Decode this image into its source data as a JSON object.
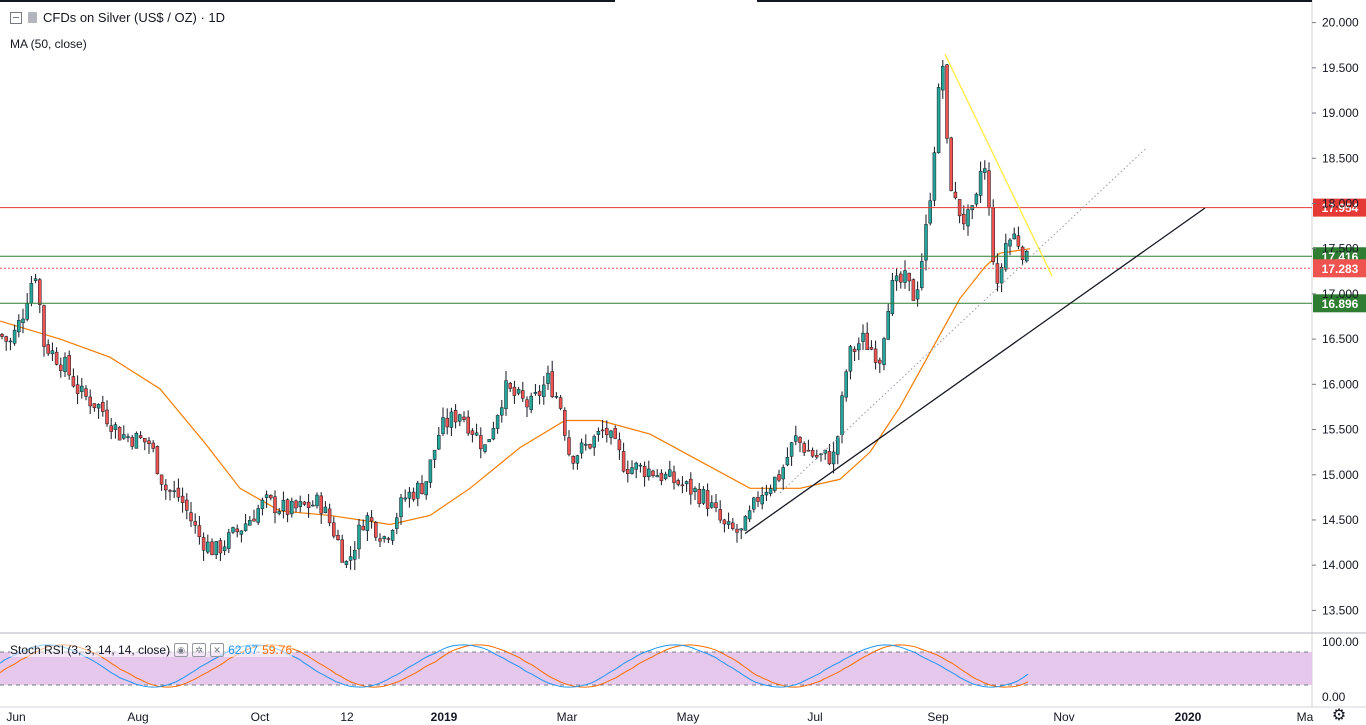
{
  "legend": {
    "title": "CFDs on Silver (US$ / OZ) · 1D",
    "ma_label": "MA (50, close)",
    "collapse_icon": "minus-box-icon",
    "symbol_icon": "symbol-icon"
  },
  "rsi_legend": {
    "label": "Stoch RSI (3, 3, 14, 14, close)",
    "k_value": "62.07",
    "d_value": "59.76"
  },
  "colors": {
    "up": "#26a69a",
    "down": "#ef5350",
    "ma": "#f57c00",
    "resistance": "#e53935",
    "support": "#2e7d32",
    "price_tag": "#ef5350",
    "stoch_k": "#2196f3",
    "stoch_d": "#ff6d00",
    "stoch_band": "#e1bee7",
    "trend_down": "#ffeb3b",
    "trend_up": "#131722"
  },
  "chart_data": {
    "type": "candlestick",
    "title": "CFDs on Silver (US$ / OZ) · 1D",
    "ylim": [
      13.25,
      20.25
    ],
    "yticks": [
      "13.500",
      "14.000",
      "14.500",
      "15.000",
      "15.500",
      "16.000",
      "16.500",
      "17.000",
      "17.500",
      "18.000",
      "18.500",
      "19.000",
      "19.500",
      "20.000"
    ],
    "xticks": [
      "Jun",
      "Aug",
      "Oct",
      "12",
      "2019",
      "Mar",
      "May",
      "Jul",
      "Sep",
      "Nov",
      "2020",
      "Ma"
    ],
    "price_levels": [
      {
        "label": "17.954",
        "value": 17.954,
        "role": "resistance"
      },
      {
        "label": "17.416",
        "value": 17.416,
        "role": "support-upper"
      },
      {
        "label": "17.283",
        "value": 17.283,
        "role": "last-price"
      },
      {
        "label": "16.896",
        "value": 16.896,
        "role": "support-lower"
      }
    ],
    "close_path": [
      {
        "t": 0,
        "v": 16.55
      },
      {
        "t": 10,
        "v": 16.45
      },
      {
        "t": 22,
        "v": 16.75
      },
      {
        "t": 30,
        "v": 17.1
      },
      {
        "t": 36,
        "v": 17.25
      },
      {
        "t": 44,
        "v": 16.45
      },
      {
        "t": 65,
        "v": 16.2
      },
      {
        "t": 80,
        "v": 15.9
      },
      {
        "t": 100,
        "v": 15.75
      },
      {
        "t": 120,
        "v": 15.45
      },
      {
        "t": 150,
        "v": 15.35
      },
      {
        "t": 165,
        "v": 14.85
      },
      {
        "t": 180,
        "v": 14.75
      },
      {
        "t": 200,
        "v": 14.3
      },
      {
        "t": 215,
        "v": 14.15
      },
      {
        "t": 240,
        "v": 14.4
      },
      {
        "t": 265,
        "v": 14.7
      },
      {
        "t": 290,
        "v": 14.6
      },
      {
        "t": 320,
        "v": 14.7
      },
      {
        "t": 335,
        "v": 14.35
      },
      {
        "t": 347,
        "v": 14.0
      },
      {
        "t": 365,
        "v": 14.55
      },
      {
        "t": 385,
        "v": 14.3
      },
      {
        "t": 405,
        "v": 14.75
      },
      {
        "t": 425,
        "v": 14.9
      },
      {
        "t": 440,
        "v": 15.5
      },
      {
        "t": 460,
        "v": 15.7
      },
      {
        "t": 485,
        "v": 15.3
      },
      {
        "t": 505,
        "v": 15.95
      },
      {
        "t": 530,
        "v": 15.75
      },
      {
        "t": 548,
        "v": 16.05
      },
      {
        "t": 560,
        "v": 15.8
      },
      {
        "t": 570,
        "v": 15.2
      },
      {
        "t": 585,
        "v": 15.3
      },
      {
        "t": 605,
        "v": 15.5
      },
      {
        "t": 625,
        "v": 15.1
      },
      {
        "t": 650,
        "v": 15.05
      },
      {
        "t": 680,
        "v": 14.9
      },
      {
        "t": 705,
        "v": 14.75
      },
      {
        "t": 725,
        "v": 14.4
      },
      {
        "t": 742,
        "v": 14.35
      },
      {
        "t": 760,
        "v": 14.8
      },
      {
        "t": 780,
        "v": 15.0
      },
      {
        "t": 795,
        "v": 15.4
      },
      {
        "t": 815,
        "v": 15.2
      },
      {
        "t": 835,
        "v": 15.2
      },
      {
        "t": 848,
        "v": 16.3
      },
      {
        "t": 862,
        "v": 16.5
      },
      {
        "t": 880,
        "v": 16.3
      },
      {
        "t": 890,
        "v": 17.05
      },
      {
        "t": 905,
        "v": 17.15
      },
      {
        "t": 915,
        "v": 16.95
      },
      {
        "t": 925,
        "v": 17.6
      },
      {
        "t": 932,
        "v": 18.3
      },
      {
        "t": 938,
        "v": 19.15
      },
      {
        "t": 943,
        "v": 19.55
      },
      {
        "t": 948,
        "v": 18.4
      },
      {
        "t": 955,
        "v": 18.0
      },
      {
        "t": 965,
        "v": 17.8
      },
      {
        "t": 975,
        "v": 17.9
      },
      {
        "t": 983,
        "v": 18.55
      },
      {
        "t": 990,
        "v": 17.8
      },
      {
        "t": 997,
        "v": 17.0
      },
      {
        "t": 1005,
        "v": 17.55
      },
      {
        "t": 1015,
        "v": 17.65
      },
      {
        "t": 1022,
        "v": 17.5
      },
      {
        "t": 1030,
        "v": 17.28
      }
    ],
    "ma_path": [
      {
        "t": 0,
        "v": 16.7
      },
      {
        "t": 60,
        "v": 16.5
      },
      {
        "t": 110,
        "v": 16.3
      },
      {
        "t": 160,
        "v": 15.95
      },
      {
        "t": 205,
        "v": 15.35
      },
      {
        "t": 240,
        "v": 14.85
      },
      {
        "t": 280,
        "v": 14.6
      },
      {
        "t": 330,
        "v": 14.55
      },
      {
        "t": 390,
        "v": 14.45
      },
      {
        "t": 430,
        "v": 14.55
      },
      {
        "t": 470,
        "v": 14.85
      },
      {
        "t": 520,
        "v": 15.3
      },
      {
        "t": 565,
        "v": 15.6
      },
      {
        "t": 600,
        "v": 15.6
      },
      {
        "t": 650,
        "v": 15.45
      },
      {
        "t": 700,
        "v": 15.15
      },
      {
        "t": 750,
        "v": 14.85
      },
      {
        "t": 800,
        "v": 14.85
      },
      {
        "t": 840,
        "v": 14.95
      },
      {
        "t": 870,
        "v": 15.25
      },
      {
        "t": 900,
        "v": 15.75
      },
      {
        "t": 930,
        "v": 16.35
      },
      {
        "t": 960,
        "v": 16.95
      },
      {
        "t": 985,
        "v": 17.3
      },
      {
        "t": 1000,
        "v": 17.45
      },
      {
        "t": 1030,
        "v": 17.5
      }
    ],
    "trendlines": [
      {
        "name": "downtrend",
        "from": {
          "t": 945,
          "v": 19.65
        },
        "to": {
          "t": 1052,
          "v": 17.2
        }
      },
      {
        "name": "uptrend",
        "from": {
          "t": 745,
          "v": 14.35
        },
        "to": {
          "t": 1205,
          "v": 17.95
        }
      },
      {
        "name": "uptrend-dotted",
        "from": {
          "t": 780,
          "v": 14.8
        },
        "to": {
          "t": 1145,
          "v": 18.6
        }
      }
    ],
    "stoch_rsi": {
      "ylim": [
        0,
        100
      ],
      "yticks": [
        "100.00",
        "0.00"
      ],
      "upper_band": 80,
      "lower_band": 20,
      "k": 62.07,
      "d": 59.76
    }
  }
}
